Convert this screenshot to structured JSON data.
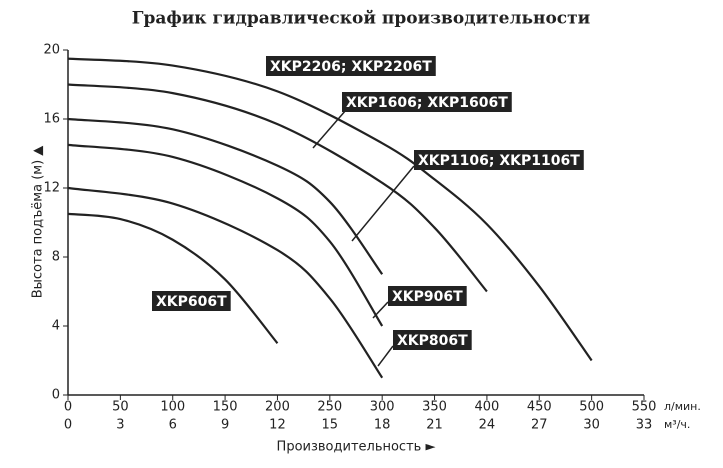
{
  "chart_data": {
    "type": "line",
    "title": "График гидравлической производительности",
    "x_label": "Производительность ►",
    "y_label": "Высота подъёма (м) ▲",
    "x_unit": "л/мин.",
    "x2_unit": "м³/ч.",
    "xlim": [
      0,
      550
    ],
    "xticks": [
      0,
      50,
      100,
      150,
      200,
      250,
      300,
      350,
      400,
      450,
      500,
      550
    ],
    "x2lim": [
      0,
      33
    ],
    "x2ticks": [
      0,
      3,
      6,
      9,
      12,
      15,
      18,
      21,
      24,
      27,
      30,
      33
    ],
    "ylim": [
      0,
      20
    ],
    "yticks": [
      0,
      4,
      8,
      12,
      16,
      20
    ],
    "series": [
      {
        "name": "XKP2206; XKP2206T",
        "color": "#222222",
        "x": [
          0,
          100,
          200,
          300,
          350,
          400,
          450,
          500
        ],
        "values": [
          19.5,
          19.1,
          17.6,
          14.6,
          12.5,
          9.9,
          6.3,
          2
        ]
      },
      {
        "name": "XKP1606; XKP1606T",
        "color": "#222222",
        "x": [
          0,
          100,
          200,
          300,
          350,
          400
        ],
        "values": [
          18,
          17.5,
          15.7,
          12.3,
          9.7,
          6
        ]
      },
      {
        "name": "XKP1106; XKP1106T",
        "color": "#222222",
        "x": [
          0,
          100,
          200,
          250,
          300
        ],
        "values": [
          16,
          15.4,
          13.3,
          11.2,
          7
        ]
      },
      {
        "name": "XKP906T",
        "color": "#222222",
        "x": [
          0,
          100,
          200,
          250,
          300
        ],
        "values": [
          14.5,
          13.8,
          11.4,
          8.9,
          4
        ]
      },
      {
        "name": "XKP806T",
        "color": "#222222",
        "x": [
          0,
          100,
          200,
          250,
          300
        ],
        "values": [
          12,
          11.1,
          8.4,
          5.6,
          1
        ]
      },
      {
        "name": "XKP606T",
        "color": "#222222",
        "x": [
          0,
          50,
          100,
          150,
          200
        ],
        "values": [
          10.5,
          10.2,
          9,
          6.7,
          3
        ]
      }
    ]
  }
}
